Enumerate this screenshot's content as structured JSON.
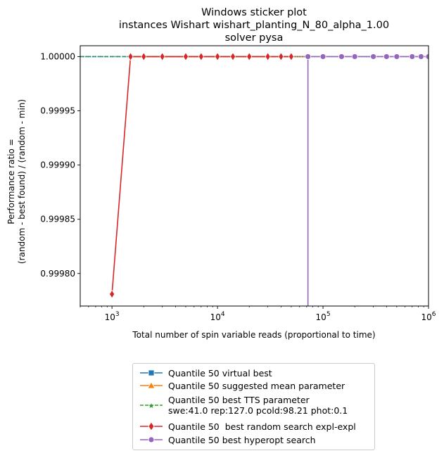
{
  "chart_data": {
    "type": "line",
    "title_lines": [
      "Windows sticker plot",
      "instances Wishart wishart_planting_N_80_alpha_1.00",
      "solver pysa"
    ],
    "xlabel": "Total number of spin variable reads (proportional to time)",
    "ylabel_lines": [
      "Performance ratio =",
      "(random - best found) / (random - min)"
    ],
    "xscale": "log",
    "xlim": [
      500,
      1000000
    ],
    "ylim": [
      0.99977,
      1.00001
    ],
    "xticks": [
      {
        "value": 1000,
        "base": "10",
        "exp": "3"
      },
      {
        "value": 10000,
        "base": "10",
        "exp": "4"
      },
      {
        "value": 100000,
        "base": "10",
        "exp": "5"
      },
      {
        "value": 1000000,
        "base": "10",
        "exp": "6"
      }
    ],
    "yticks": [
      {
        "value": 0.9998,
        "label": "0.99980"
      },
      {
        "value": 0.99985,
        "label": "0.99985"
      },
      {
        "value": 0.9999,
        "label": "0.99990"
      },
      {
        "value": 0.99995,
        "label": "0.99995"
      },
      {
        "value": 1.0,
        "label": "1.00000"
      }
    ],
    "legend_position": "below",
    "series": [
      {
        "name": "Quantile 50 virtual best",
        "color": "#1f77b4",
        "marker": "square",
        "linestyle": "dotted",
        "x": [
          500,
          1000000
        ],
        "y": [
          1.0,
          1.0
        ]
      },
      {
        "name": "Quantile 50 suggested mean parameter",
        "color": "#ff7f0e",
        "marker": "triangle",
        "linestyle": "solid",
        "x": [
          1500,
          70000
        ],
        "y": [
          1.0,
          1.0
        ]
      },
      {
        "name": "Quantile 50 best TTS parameter\nswe:41.0 rep:127.0 pcold:98.21 phot:0.1",
        "color": "#2ca02c",
        "marker": "star",
        "linestyle": "dashed",
        "x": [
          500,
          70000
        ],
        "y": [
          1.0,
          1.0
        ]
      },
      {
        "name": "Quantile 50  best random search expl-expl",
        "color": "#d62728",
        "marker": "diamond",
        "linestyle": "solid",
        "x": [
          1000,
          1500,
          2000,
          3000,
          5000,
          7000,
          10000,
          14000,
          20000,
          30000,
          40000,
          50000
        ],
        "y": [
          0.999781,
          1.0,
          1.0,
          1.0,
          1.0,
          1.0,
          1.0,
          1.0,
          1.0,
          1.0,
          1.0,
          1.0
        ]
      },
      {
        "name": "Quantile 50 best hyperopt search",
        "color": "#9467bd",
        "marker": "circle",
        "linestyle": "solid",
        "x": [
          72000,
          72000,
          100000,
          150000,
          200000,
          300000,
          400000,
          500000,
          700000,
          850000,
          1000000
        ],
        "y": [
          0.99977,
          1.0,
          1.0,
          1.0,
          1.0,
          1.0,
          1.0,
          1.0,
          1.0,
          1.0,
          1.0
        ]
      }
    ]
  }
}
